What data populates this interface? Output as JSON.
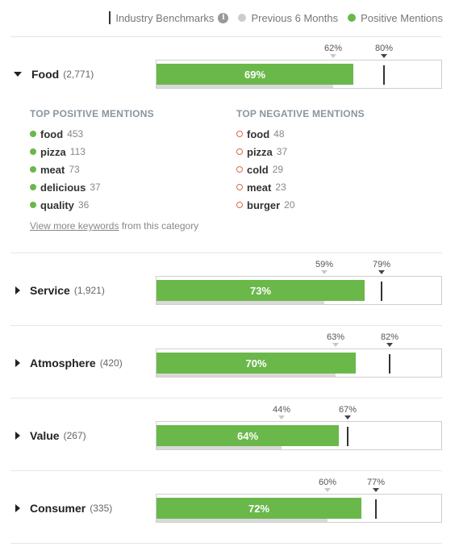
{
  "legend": {
    "benchmarks_label": "Industry Benchmarks",
    "info_glyph": "i",
    "previous_label": "Previous 6 Months",
    "positive_label": "Positive Mentions"
  },
  "colors": {
    "positive": "#6ab84a",
    "previous": "#d9d9d9",
    "benchmark": "#333333",
    "negative_dot": "#d9694e"
  },
  "categories": [
    {
      "name": "Food",
      "count": "(2,771)",
      "expanded": true,
      "positive": 69,
      "positive_label": "69%",
      "previous": 62,
      "previous_label": "62%",
      "benchmark": 80,
      "benchmark_label": "80%"
    },
    {
      "name": "Service",
      "count": "(1,921)",
      "expanded": false,
      "positive": 73,
      "positive_label": "73%",
      "previous": 59,
      "previous_label": "59%",
      "benchmark": 79,
      "benchmark_label": "79%"
    },
    {
      "name": "Atmosphere",
      "count": "(420)",
      "expanded": false,
      "positive": 70,
      "positive_label": "70%",
      "previous": 63,
      "previous_label": "63%",
      "benchmark": 82,
      "benchmark_label": "82%"
    },
    {
      "name": "Value",
      "count": "(267)",
      "expanded": false,
      "positive": 64,
      "positive_label": "64%",
      "previous": 44,
      "previous_label": "44%",
      "benchmark": 67,
      "benchmark_label": "67%"
    },
    {
      "name": "Consumer",
      "count": "(335)",
      "expanded": false,
      "positive": 72,
      "positive_label": "72%",
      "previous": 60,
      "previous_label": "60%",
      "benchmark": 77,
      "benchmark_label": "77%"
    }
  ],
  "food_details": {
    "positive_title": "TOP POSITIVE MENTIONS",
    "negative_title": "TOP NEGATIVE MENTIONS",
    "positive": [
      {
        "word": "food",
        "count": "453"
      },
      {
        "word": "pizza",
        "count": "113"
      },
      {
        "word": "meat",
        "count": "73"
      },
      {
        "word": "delicious",
        "count": "37"
      },
      {
        "word": "quality",
        "count": "36"
      }
    ],
    "negative": [
      {
        "word": "food",
        "count": "48"
      },
      {
        "word": "pizza",
        "count": "37"
      },
      {
        "word": "cold",
        "count": "29"
      },
      {
        "word": "meat",
        "count": "23"
      },
      {
        "word": "burger",
        "count": "20"
      }
    ],
    "more_link": "View more keywords",
    "more_suffix": " from this category"
  }
}
